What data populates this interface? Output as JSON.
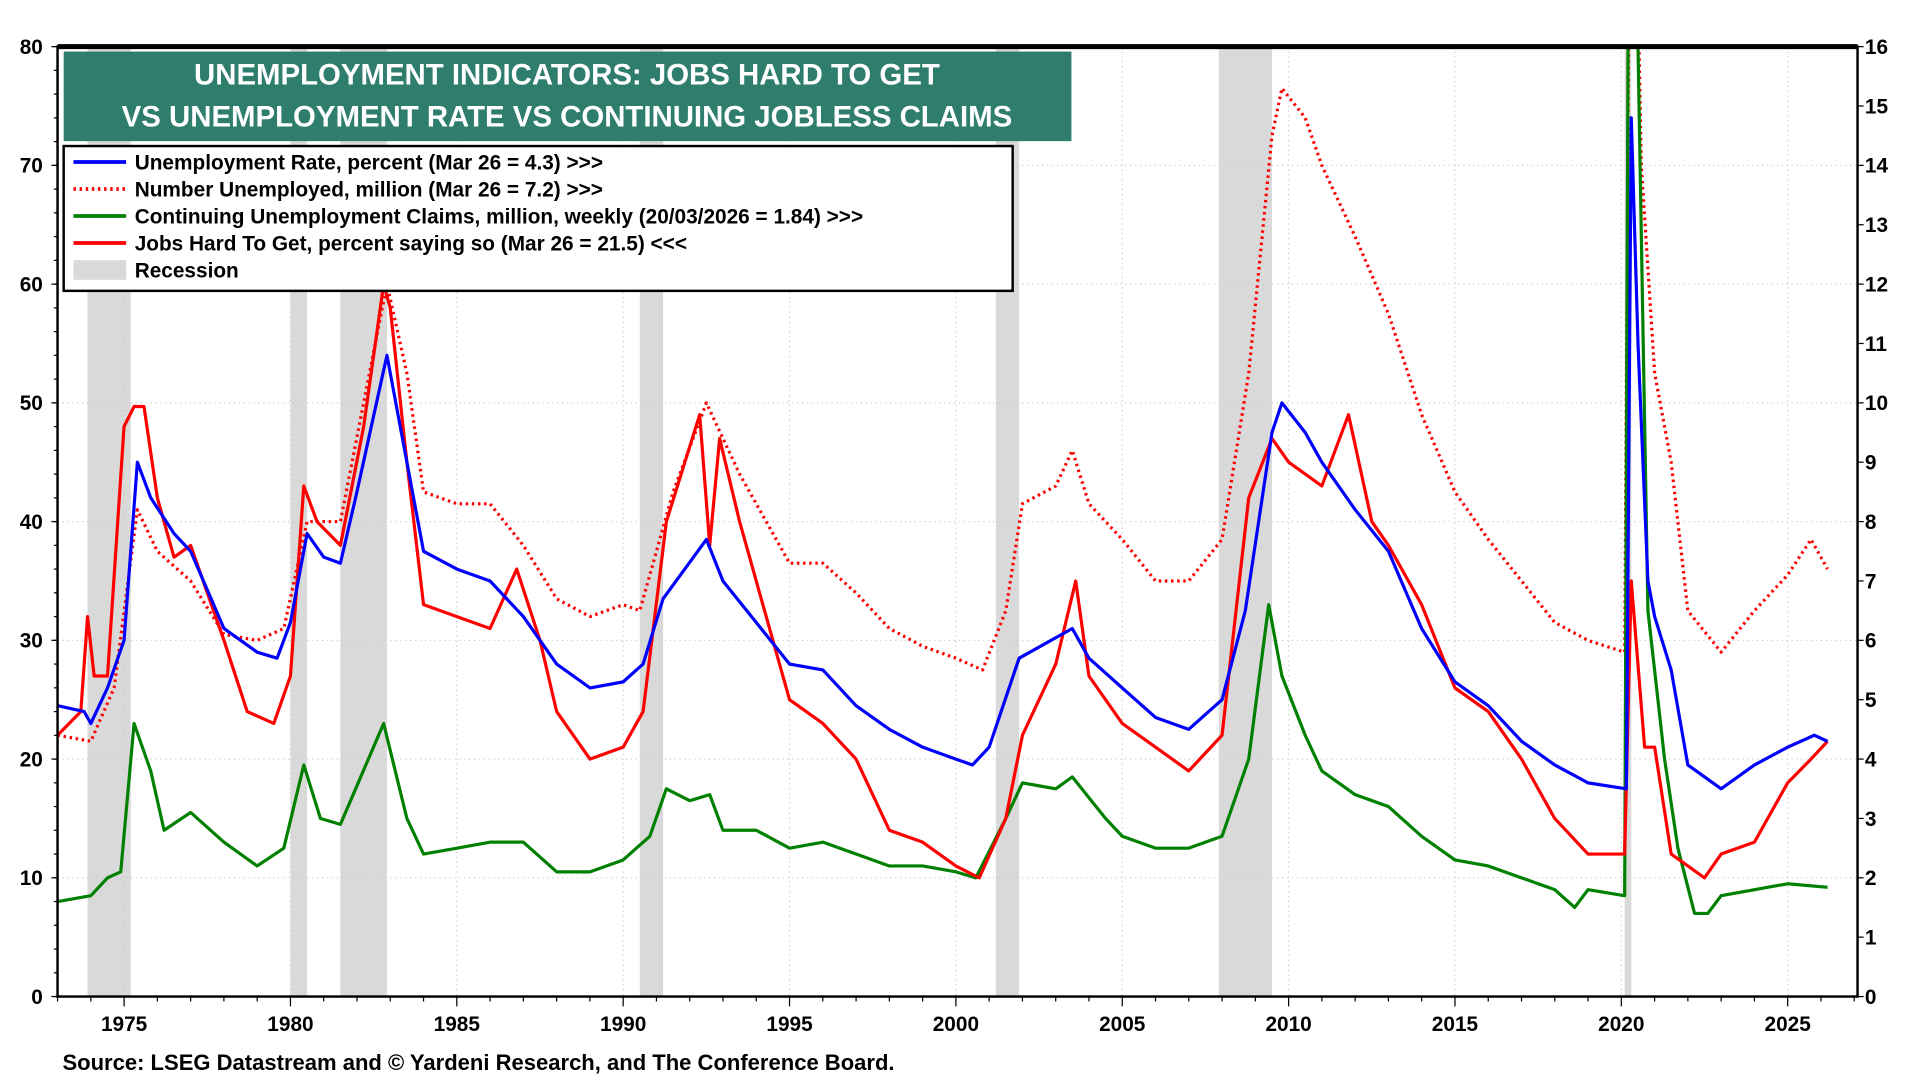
{
  "chart_data": {
    "type": "line",
    "title_lines": [
      "UNEMPLOYMENT INDICATORS: JOBS HARD TO GET",
      "VS UNEMPLOYMENT RATE VS CONTINUING JOBLESS CLAIMS"
    ],
    "source": "Source: LSEG Datastream and © Yardeni Research, and The Conference Board.",
    "xlim": [
      1973.0,
      2027.1
    ],
    "x_ticks": [
      1975,
      1980,
      1985,
      1990,
      1995,
      2000,
      2005,
      2010,
      2015,
      2020,
      2025
    ],
    "left_axis": {
      "ylim": [
        0,
        80
      ],
      "ticks": [
        0,
        10,
        20,
        30,
        40,
        50,
        60,
        70,
        80
      ]
    },
    "right_axis": {
      "ylim": [
        0,
        16
      ],
      "ticks": [
        0,
        1,
        2,
        3,
        4,
        5,
        6,
        7,
        8,
        9,
        10,
        11,
        12,
        13,
        14,
        15,
        16
      ]
    },
    "grid": true,
    "legend_position": "top-left",
    "title_bg_color": "#2f7d6d",
    "recession_color": "#d9d9d9",
    "recessions": [
      [
        1973.9,
        1975.2
      ],
      [
        1980.0,
        1980.5
      ],
      [
        1981.5,
        1982.9
      ],
      [
        1990.5,
        1991.2
      ],
      [
        2001.2,
        2001.9
      ],
      [
        2007.9,
        2009.5
      ],
      [
        2020.1,
        2020.3
      ]
    ],
    "legend_recession": "Recession",
    "series": [
      {
        "name": "Unemployment Rate, percent (Mar 26 = 4.3) >>>",
        "axis": "right",
        "color": "#0000ff",
        "style": "solid",
        "x": [
          1973,
          1973.8,
          1974,
          1974.5,
          1975,
          1975.4,
          1975.8,
          1976.5,
          1977,
          1978,
          1979,
          1979.6,
          1980,
          1980.5,
          1981,
          1981.5,
          1982,
          1982.9,
          1983.5,
          1984,
          1985,
          1986,
          1987,
          1988,
          1989,
          1990,
          1990.6,
          1991.2,
          1992.5,
          1993,
          1994,
          1995,
          1996,
          1997,
          1998,
          1999,
          2000,
          2000.5,
          2001,
          2001.9,
          2003.5,
          2004,
          2005,
          2006,
          2007,
          2008,
          2008.7,
          2009.5,
          2009.8,
          2010.5,
          2011,
          2012,
          2013,
          2014,
          2015,
          2016,
          2017,
          2018,
          2019,
          2020.15,
          2020.3,
          2020.5,
          2020.8,
          2021,
          2021.5,
          2022,
          2023,
          2024,
          2025,
          2025.8,
          2026.2
        ],
        "y": [
          4.9,
          4.8,
          4.6,
          5.2,
          6.0,
          9.0,
          8.4,
          7.8,
          7.5,
          6.2,
          5.8,
          5.7,
          6.3,
          7.8,
          7.4,
          7.3,
          8.5,
          10.8,
          9.0,
          7.5,
          7.2,
          7.0,
          6.4,
          5.6,
          5.2,
          5.3,
          5.6,
          6.7,
          7.7,
          7.0,
          6.3,
          5.6,
          5.5,
          4.9,
          4.5,
          4.2,
          4.0,
          3.9,
          4.2,
          5.7,
          6.2,
          5.7,
          5.2,
          4.7,
          4.5,
          5.0,
          6.5,
          9.5,
          10.0,
          9.5,
          9.0,
          8.2,
          7.5,
          6.2,
          5.3,
          4.9,
          4.3,
          3.9,
          3.6,
          3.5,
          14.8,
          11.0,
          7.0,
          6.4,
          5.5,
          3.9,
          3.5,
          3.9,
          4.2,
          4.4,
          4.3
        ]
      },
      {
        "name": "Number Unemployed, million (Mar 26 = 7.2) >>>",
        "axis": "right",
        "color": "#ff0000",
        "style": "dotted",
        "x": [
          1973,
          1974,
          1974.7,
          1975.4,
          1976,
          1977,
          1978,
          1979,
          1979.8,
          1980.5,
          1981.5,
          1982.9,
          1983.5,
          1984,
          1985,
          1986,
          1987,
          1988,
          1989,
          1990,
          1990.5,
          1991.5,
          1992.5,
          1993.5,
          1994.5,
          1995,
          1996,
          1997,
          1998,
          1999,
          2000,
          2000.8,
          2001.5,
          2002,
          2003,
          2003.5,
          2004,
          2005,
          2006,
          2007,
          2008,
          2008.8,
          2009.5,
          2009.8,
          2010.5,
          2011,
          2012,
          2013,
          2014,
          2015,
          2016,
          2017,
          2018,
          2019,
          2020.1,
          2020.3,
          2020.6,
          2021,
          2021.5,
          2022,
          2023,
          2024,
          2025,
          2025.7,
          2026.2
        ],
        "y": [
          4.4,
          4.3,
          5.2,
          8.2,
          7.5,
          7.0,
          6.1,
          6.0,
          6.2,
          8.0,
          8.0,
          12.0,
          10.5,
          8.5,
          8.3,
          8.3,
          7.6,
          6.7,
          6.4,
          6.6,
          6.5,
          8.5,
          10.0,
          8.8,
          7.8,
          7.3,
          7.3,
          6.8,
          6.2,
          5.9,
          5.7,
          5.5,
          6.5,
          8.3,
          8.6,
          9.2,
          8.3,
          7.7,
          7.0,
          7.0,
          7.7,
          10.5,
          14.5,
          15.3,
          14.8,
          14.0,
          12.8,
          11.5,
          9.8,
          8.5,
          7.7,
          7.0,
          6.3,
          6.0,
          5.8,
          23.0,
          14.0,
          10.5,
          9.0,
          6.5,
          5.8,
          6.5,
          7.1,
          7.7,
          7.2
        ]
      },
      {
        "name": "Continuing Unemployment Claims, million, weekly (20/03/2026 = 1.84) >>>",
        "axis": "right",
        "color": "#008000",
        "style": "solid",
        "x": [
          1973,
          1974,
          1974.5,
          1974.9,
          1975.3,
          1975.8,
          1976.2,
          1977,
          1978,
          1979,
          1979.8,
          1980.4,
          1980.9,
          1981.5,
          1982.8,
          1983.5,
          1984,
          1985,
          1986,
          1987,
          1988,
          1989,
          1990,
          1990.8,
          1991.3,
          1992,
          1992.6,
          1993,
          1994,
          1995,
          1996,
          1997,
          1998,
          1999,
          2000,
          2000.6,
          2001.5,
          2002,
          2003,
          2003.5,
          2004.5,
          2005,
          2006,
          2007,
          2008,
          2008.8,
          2009.4,
          2009.8,
          2010.5,
          2011,
          2012,
          2013,
          2014,
          2015,
          2016,
          2017,
          2018,
          2018.6,
          2019,
          2020.1,
          2020.25,
          2020.5,
          2020.8,
          2021.3,
          2021.7,
          2022.2,
          2022.6,
          2023,
          2024,
          2025,
          2026.2
        ],
        "y": [
          1.6,
          1.7,
          2.0,
          2.1,
          4.6,
          3.8,
          2.8,
          3.1,
          2.6,
          2.2,
          2.5,
          3.9,
          3.0,
          2.9,
          4.6,
          3.0,
          2.4,
          2.5,
          2.6,
          2.6,
          2.1,
          2.1,
          2.3,
          2.7,
          3.5,
          3.3,
          3.4,
          2.8,
          2.8,
          2.5,
          2.6,
          2.4,
          2.2,
          2.2,
          2.1,
          2.0,
          3.0,
          3.6,
          3.5,
          3.7,
          3.0,
          2.7,
          2.5,
          2.5,
          2.7,
          4.0,
          6.6,
          5.4,
          4.4,
          3.8,
          3.4,
          3.2,
          2.7,
          2.3,
          2.2,
          2.0,
          1.8,
          1.5,
          1.8,
          1.7,
          23.0,
          16.0,
          6.5,
          4.0,
          2.5,
          1.4,
          1.4,
          1.7,
          1.8,
          1.9,
          1.84
        ]
      },
      {
        "name": "Jobs Hard To Get, percent saying so (Mar 26 = 21.5) <<<",
        "axis": "left",
        "color": "#ff0000",
        "style": "solid",
        "x": [
          1973,
          1973.7,
          1973.9,
          1974.1,
          1974.5,
          1975,
          1975.3,
          1975.6,
          1976,
          1976.5,
          1977,
          1978,
          1978.7,
          1979.5,
          1980,
          1980.4,
          1980.8,
          1981.5,
          1982.2,
          1982.8,
          1983,
          1983.5,
          1984,
          1985,
          1986,
          1986.8,
          1987.5,
          1988,
          1989,
          1990,
          1990.6,
          1991.3,
          1992.3,
          1992.6,
          1992.9,
          1993.5,
          1994.5,
          1995,
          1996,
          1997,
          1998,
          1999,
          2000,
          2000.7,
          2001.5,
          2002,
          2003,
          2003.6,
          2004,
          2005,
          2006,
          2007,
          2008,
          2008.8,
          2009.5,
          2010,
          2011,
          2011.8,
          2012.5,
          2013,
          2014,
          2015,
          2016,
          2017,
          2018,
          2019,
          2020.1,
          2020.3,
          2020.7,
          2021,
          2021.5,
          2022,
          2022.5,
          2023,
          2024,
          2025,
          2025.7,
          2026.2
        ],
        "y": [
          22,
          24,
          32,
          27,
          27,
          48,
          49.7,
          49.7,
          42,
          37,
          38,
          30,
          24,
          23,
          27,
          43,
          40,
          38,
          48,
          60,
          58,
          45,
          33,
          32,
          31,
          36,
          30,
          24,
          20,
          21,
          24,
          40,
          49,
          38,
          47,
          40,
          30,
          25,
          23,
          20,
          14,
          13,
          11,
          10,
          15,
          22,
          28,
          35,
          27,
          23,
          21,
          19,
          22,
          42,
          47,
          45,
          43,
          49,
          40,
          38,
          33,
          26,
          24,
          20,
          15,
          12,
          12,
          35,
          21,
          21,
          12,
          11,
          10,
          12,
          13,
          18,
          20,
          21.5
        ]
      }
    ]
  }
}
